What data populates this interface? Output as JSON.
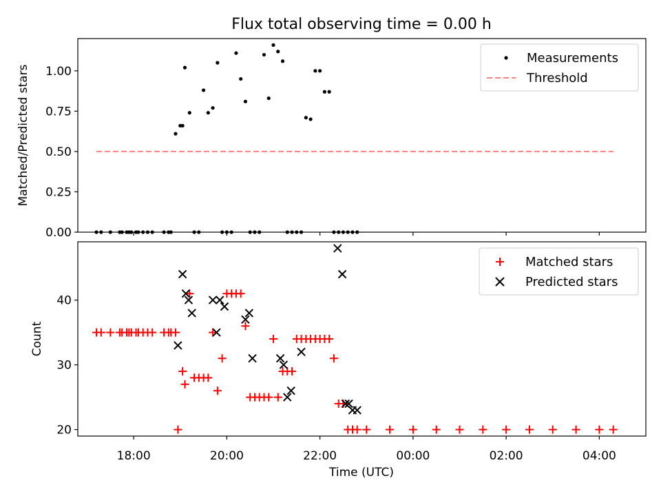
{
  "chart_data": [
    {
      "type": "scatter",
      "title": "Flux total observing time = 0.00 h",
      "xlabel": "",
      "ylabel": "Matched/Predicted stars",
      "xlim": [
        16.8,
        29.0
      ],
      "ylim": [
        0.0,
        1.2
      ],
      "yticks": [
        0.0,
        0.25,
        0.5,
        0.75,
        1.0
      ],
      "ytick_labels": [
        "0.00",
        "0.25",
        "0.50",
        "0.75",
        "1.00"
      ],
      "legend_position": "top-right",
      "series": [
        {
          "name": "Measurements",
          "marker": "dot",
          "color": "#000000",
          "x": [
            17.2,
            17.3,
            17.5,
            17.7,
            17.75,
            17.85,
            17.9,
            17.95,
            18.05,
            18.1,
            18.2,
            18.3,
            18.4,
            18.65,
            18.75,
            18.8,
            18.9,
            19.0,
            19.05,
            19.1,
            19.2,
            19.3,
            19.4,
            19.5,
            19.6,
            19.7,
            19.8,
            19.9,
            20.0,
            20.1,
            20.2,
            20.3,
            20.4,
            20.5,
            20.6,
            20.7,
            20.8,
            20.9,
            21.0,
            21.1,
            21.2,
            21.3,
            21.4,
            21.5,
            21.6,
            21.7,
            21.8,
            21.9,
            22.0,
            22.1,
            22.2,
            22.3,
            22.4,
            22.5,
            22.6,
            22.7,
            22.8
          ],
          "y": [
            0,
            0,
            0,
            0,
            0,
            0,
            0,
            0,
            0,
            0,
            0,
            0,
            0,
            0,
            0,
            0,
            0.61,
            0.66,
            0.66,
            1.02,
            0.74,
            0,
            0,
            0.88,
            0.74,
            0.77,
            1.05,
            0,
            0,
            0,
            1.11,
            0.95,
            0.81,
            0,
            0,
            0,
            1.1,
            0.83,
            1.16,
            1.12,
            1.06,
            0,
            0,
            0,
            0,
            0.71,
            0.7,
            1.0,
            1.0,
            0.87,
            0.87,
            0,
            0,
            0,
            0,
            0,
            0
          ]
        },
        {
          "name": "Threshold",
          "style": "dashed",
          "color": "#ff7f7f",
          "x": [
            17.2,
            28.3
          ],
          "y": [
            0.5,
            0.5
          ]
        }
      ]
    },
    {
      "type": "scatter",
      "title": "",
      "xlabel": "Time (UTC)",
      "ylabel": "Count",
      "xlim": [
        16.8,
        29.0
      ],
      "ylim": [
        19,
        49
      ],
      "yticks": [
        20,
        30,
        40
      ],
      "ytick_labels": [
        "20",
        "30",
        "40"
      ],
      "xticks": [
        18,
        20,
        22,
        24,
        26,
        28
      ],
      "xtick_labels": [
        "18:00",
        "20:00",
        "22:00",
        "00:00",
        "02:00",
        "04:00"
      ],
      "legend_position": "top-right",
      "series": [
        {
          "name": "Matched stars",
          "marker": "plus",
          "color": "#ff0000",
          "x": [
            17.2,
            17.3,
            17.5,
            17.7,
            17.75,
            17.85,
            17.9,
            17.95,
            18.05,
            18.1,
            18.2,
            18.3,
            18.4,
            18.65,
            18.75,
            18.8,
            18.9,
            18.95,
            19.05,
            19.1,
            19.2,
            19.3,
            19.4,
            19.5,
            19.6,
            19.7,
            19.8,
            19.9,
            20.0,
            20.1,
            20.2,
            20.3,
            20.4,
            20.5,
            20.6,
            20.7,
            20.8,
            20.9,
            21.0,
            21.1,
            21.2,
            21.3,
            21.4,
            21.5,
            21.6,
            21.7,
            21.8,
            21.9,
            22.0,
            22.1,
            22.2,
            22.3,
            22.4,
            22.5,
            22.6,
            22.7,
            22.8,
            23.0,
            23.5,
            24.0,
            24.5,
            25.0,
            25.5,
            26.0,
            26.5,
            27.0,
            27.5,
            28.0,
            28.3
          ],
          "y": [
            35,
            35,
            35,
            35,
            35,
            35,
            35,
            35,
            35,
            35,
            35,
            35,
            35,
            35,
            35,
            35,
            35,
            20,
            29,
            27,
            41,
            28,
            28,
            28,
            28,
            35,
            26,
            31,
            41,
            41,
            41,
            41,
            36,
            25,
            25,
            25,
            25,
            25,
            34,
            25,
            29,
            29,
            29,
            34,
            34,
            34,
            34,
            34,
            34,
            34,
            34,
            31,
            24,
            24,
            20,
            20,
            20,
            20,
            20,
            20,
            20,
            20,
            20,
            20,
            20,
            20,
            20,
            20,
            20
          ]
        },
        {
          "name": "Predicted stars",
          "marker": "x",
          "color": "#000000",
          "x": [
            18.95,
            19.05,
            19.12,
            19.18,
            19.25,
            19.7,
            19.78,
            19.85,
            19.95,
            20.4,
            20.48,
            20.55,
            21.15,
            21.22,
            21.3,
            21.38,
            21.6,
            22.38,
            22.48,
            22.55,
            22.62,
            22.7,
            22.8
          ],
          "y": [
            33,
            44,
            41,
            40,
            38,
            40,
            35,
            40,
            39,
            37,
            38,
            31,
            31,
            30,
            25,
            26,
            32,
            48,
            44,
            24,
            24,
            23,
            23
          ]
        }
      ]
    }
  ]
}
